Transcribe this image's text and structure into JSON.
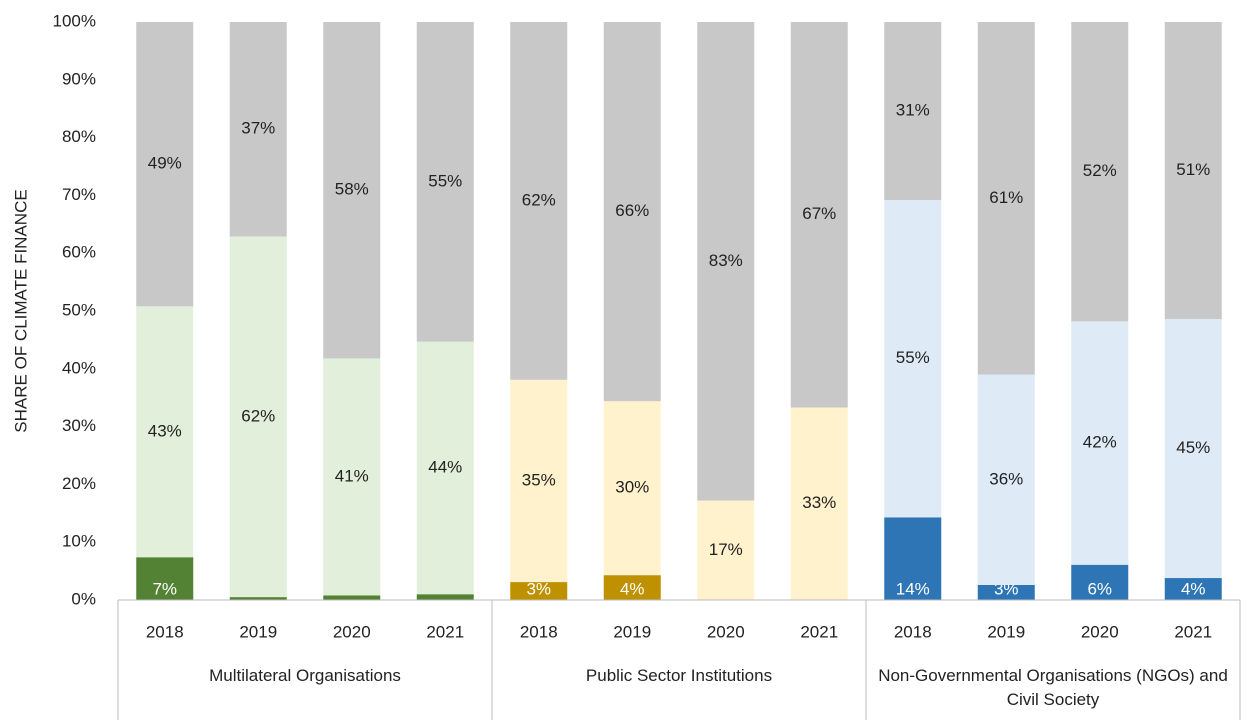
{
  "chart_data": {
    "type": "bar",
    "stacked": true,
    "ylabel": "SHARE OF CLIMATE FINANCE",
    "ylim": [
      0,
      100
    ],
    "yticks": [
      {
        "value": 0,
        "label": "0%"
      },
      {
        "value": 10,
        "label": "10%"
      },
      {
        "value": 20,
        "label": "20%"
      },
      {
        "value": 30,
        "label": "30%"
      },
      {
        "value": 40,
        "label": "40%"
      },
      {
        "value": 50,
        "label": "50%"
      },
      {
        "value": 60,
        "label": "60%"
      },
      {
        "value": 70,
        "label": "70%"
      },
      {
        "value": 80,
        "label": "80%"
      },
      {
        "value": 90,
        "label": "90%"
      },
      {
        "value": 100,
        "label": "100%"
      }
    ],
    "groups": [
      {
        "name": "Multilateral Organisations",
        "categories": [
          "2018",
          "2019",
          "2020",
          "2021"
        ],
        "series": [
          {
            "color": "#548235",
            "values": [
              7.4,
              0.5,
              0.8,
              1.0
            ],
            "value_labels": [
              "7%",
              null,
              null,
              null
            ]
          },
          {
            "color": "#e2efda",
            "values": [
              43.4,
              62.4,
              41.0,
              43.7
            ],
            "value_labels": [
              "43%",
              "62%",
              "41%",
              "44%"
            ]
          },
          {
            "color": "#c8c8c8",
            "values": [
              49.2,
              37.1,
              58.2,
              55.3
            ],
            "value_labels": [
              "49%",
              "37%",
              "58%",
              "55%"
            ]
          }
        ]
      },
      {
        "name": "Public Sector Institutions",
        "categories": [
          "2018",
          "2019",
          "2020",
          "2021"
        ],
        "series": [
          {
            "color": "#bf9000",
            "values": [
              3.1,
              4.3,
              0,
              0
            ],
            "value_labels": [
              "3%",
              "4%",
              null,
              null
            ]
          },
          {
            "color": "#fff2cc",
            "values": [
              35.0,
              30.1,
              17.2,
              33.3
            ],
            "value_labels": [
              "35%",
              "30%",
              "17%",
              "33%"
            ]
          },
          {
            "color": "#c8c8c8",
            "values": [
              61.9,
              65.6,
              82.8,
              66.7
            ],
            "value_labels": [
              "62%",
              "66%",
              "83%",
              "67%"
            ]
          }
        ]
      },
      {
        "name": "Non-Governmental Organisations (NGOs) and Civil Society",
        "categories": [
          "2018",
          "2019",
          "2020",
          "2021"
        ],
        "series": [
          {
            "color": "#2e75b6",
            "values": [
              14.3,
              2.6,
              6.1,
              3.8
            ],
            "value_labels": [
              "14%",
              "3%",
              "6%",
              "4%"
            ]
          },
          {
            "color": "#deebf7",
            "values": [
              54.9,
              36.4,
              42.1,
              44.8
            ],
            "value_labels": [
              "55%",
              "36%",
              "42%",
              "45%"
            ]
          },
          {
            "color": "#c8c8c8",
            "values": [
              30.8,
              61.0,
              51.8,
              51.4
            ],
            "value_labels": [
              "31%",
              "61%",
              "52%",
              "51%"
            ]
          }
        ]
      }
    ]
  }
}
